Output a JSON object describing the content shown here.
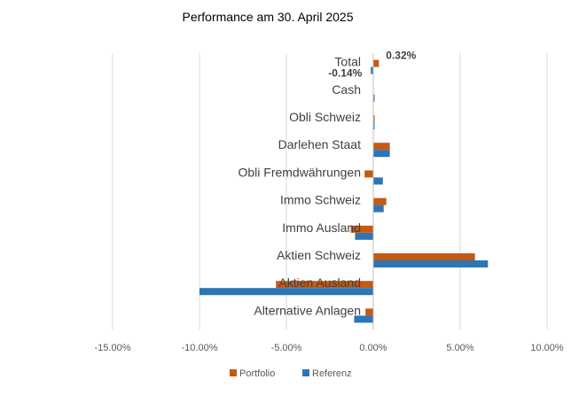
{
  "chart_data": {
    "type": "bar",
    "orientation": "horizontal",
    "title": "Performance am 30. April 2025",
    "xlabel": "",
    "ylabel": "",
    "xlim": [
      -15,
      10
    ],
    "x_ticks": [
      -15,
      -10,
      -5,
      0,
      5,
      10
    ],
    "x_tick_labels": [
      "-15.00%",
      "-10.00%",
      "-5.00%",
      "0.00%",
      "5.00%",
      "10.00%"
    ],
    "grid": "vertical",
    "legend_position": "bottom",
    "categories": [
      "Total",
      "Cash",
      "Obli Schweiz",
      "Darlehen Staat",
      "Obli Fremdwährungen",
      "Immo Schweiz",
      "Immo Ausland",
      "Aktien Schweiz",
      "Aktien Ausland",
      "Alternative Anlagen"
    ],
    "series": [
      {
        "name": "Portfolio",
        "color": "#C55A11",
        "values": [
          0.32,
          0.0,
          0.02,
          0.95,
          -0.5,
          0.75,
          -1.3,
          5.85,
          -5.6,
          -0.45
        ]
      },
      {
        "name": "Referenz",
        "color": "#2E75B6",
        "values": [
          -0.14,
          0.04,
          0.03,
          0.95,
          0.55,
          0.6,
          -1.05,
          6.6,
          -10.0,
          -1.1
        ]
      }
    ],
    "data_labels": [
      {
        "category": "Total",
        "series": "Portfolio",
        "text": "0.32%"
      },
      {
        "category": "Total",
        "series": "Referenz",
        "text": "-0.14%"
      }
    ]
  }
}
